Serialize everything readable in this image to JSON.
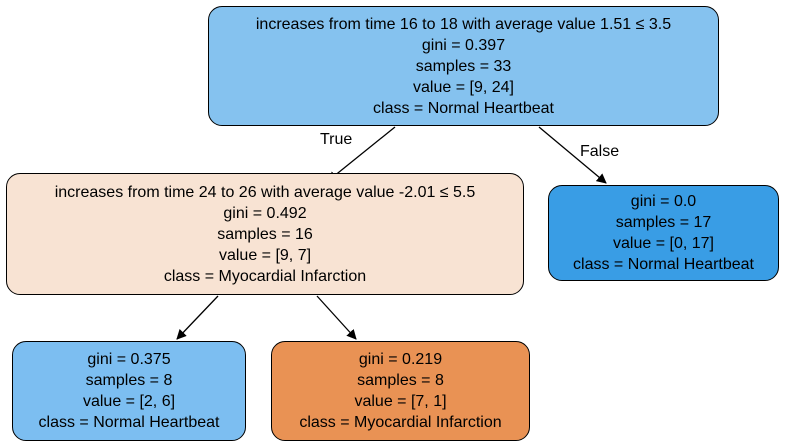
{
  "colors": {
    "class_normal_strong": "#399de5",
    "class_normal_light": "#7cbef1",
    "class_normal_root": "#85c2ef",
    "class_myocardial_light": "#f8e3d3",
    "class_myocardial_strong": "#e99254",
    "edge": "#000000"
  },
  "nodes": [
    {
      "id": "n0",
      "condition": "increases from time 16 to 18 with average value 1.51 ≤ 3.5",
      "gini": "gini = 0.397",
      "samples": "samples = 33",
      "value": "value = [9, 24]",
      "class": "class = Normal Heartbeat"
    },
    {
      "id": "n1",
      "condition": "increases from time 24 to 26 with average value -2.01 ≤ 5.5",
      "gini": "gini = 0.492",
      "samples": "samples = 16",
      "value": "value = [9, 7]",
      "class": "class = Myocardial Infarction"
    },
    {
      "id": "n2",
      "gini": "gini = 0.0",
      "samples": "samples = 17",
      "value": "value = [0, 17]",
      "class": "class = Normal Heartbeat"
    },
    {
      "id": "n3",
      "gini": "gini = 0.375",
      "samples": "samples = 8",
      "value": "value = [2, 6]",
      "class": "class = Normal Heartbeat"
    },
    {
      "id": "n4",
      "gini": "gini = 0.219",
      "samples": "samples = 8",
      "value": "value = [7, 1]",
      "class": "class = Myocardial Infarction"
    }
  ],
  "edges": [
    {
      "from": "n0",
      "to": "n1",
      "label": "True"
    },
    {
      "from": "n0",
      "to": "n2",
      "label": "False"
    },
    {
      "from": "n1",
      "to": "n3",
      "label": ""
    },
    {
      "from": "n1",
      "to": "n4",
      "label": ""
    }
  ]
}
